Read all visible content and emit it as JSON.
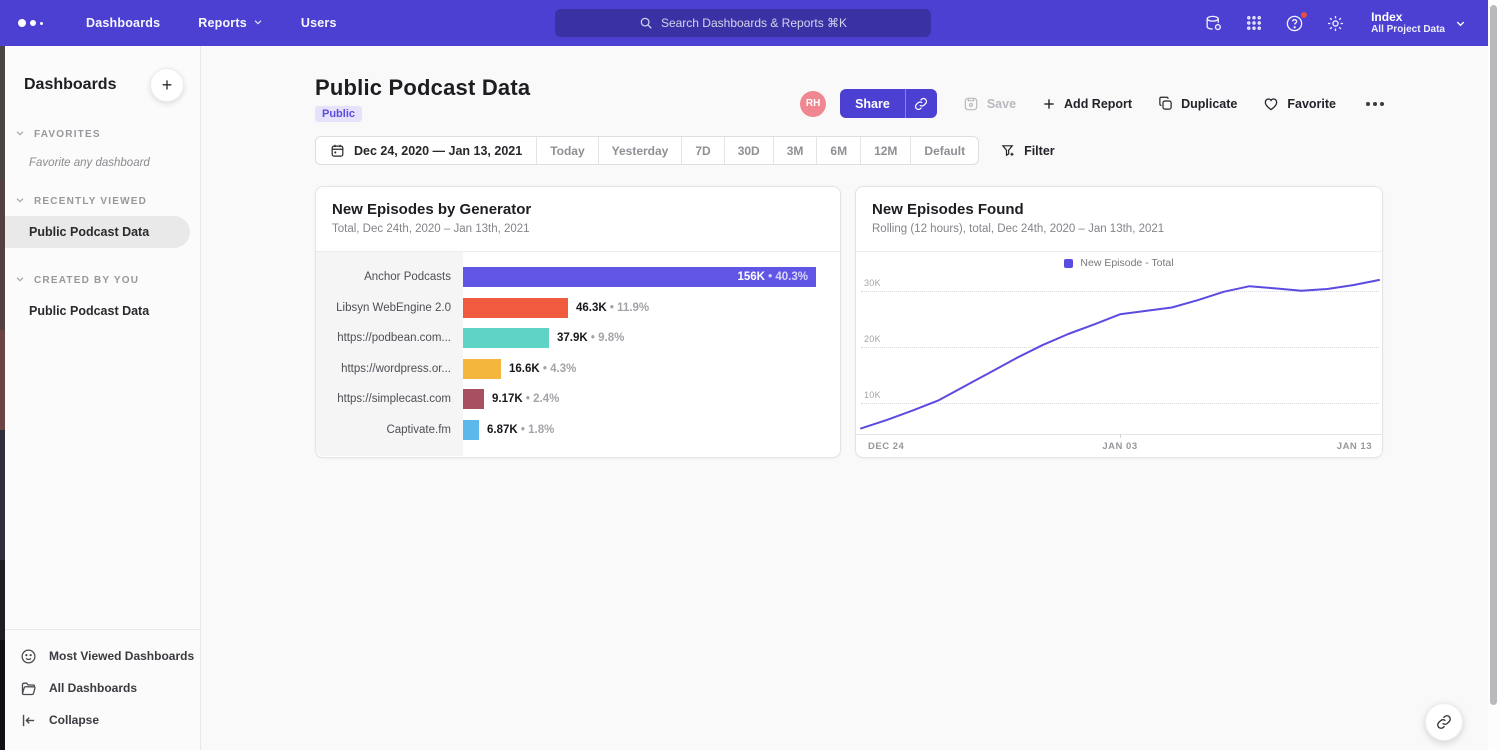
{
  "colors": {
    "topbar_bg": "#4b40d2",
    "accent": "#4b40d2",
    "badge_bg": "#e6e2fb",
    "badge_text": "#5b4be0",
    "avatar_bg": "#f0868f",
    "notification_dot": "#f4503a"
  },
  "topbar": {
    "nav": [
      {
        "label": "Dashboards",
        "chevron": false
      },
      {
        "label": "Reports",
        "chevron": true
      },
      {
        "label": "Users",
        "chevron": false
      }
    ],
    "search_placeholder": "Search Dashboards & Reports ⌘K",
    "right_icons": [
      "data-source-icon",
      "apps-grid-icon",
      "help-icon",
      "settings-gear-icon"
    ],
    "help_has_notification": true,
    "project_name": "Index",
    "project_scope": "All Project Data"
  },
  "sidebar": {
    "title": "Dashboards",
    "add_button": "+",
    "sections": [
      {
        "label": "FAVORITES",
        "empty": "Favorite any dashboard",
        "items": []
      },
      {
        "label": "RECENTLY VIEWED",
        "items": [
          {
            "label": "Public Podcast Data",
            "active": true
          }
        ]
      },
      {
        "label": "CREATED BY YOU",
        "items": [
          {
            "label": "Public Podcast Data",
            "active": false
          }
        ]
      }
    ],
    "footer": [
      {
        "icon": "smiley-icon",
        "label": "Most Viewed Dashboards"
      },
      {
        "icon": "folder-icon",
        "label": "All Dashboards"
      },
      {
        "icon": "collapse-icon",
        "label": "Collapse"
      }
    ]
  },
  "page": {
    "title": "Public Podcast Data",
    "badge": "Public",
    "avatar_initials": "RH",
    "actions": {
      "share": "Share",
      "save": "Save",
      "add_report": "Add Report",
      "duplicate": "Duplicate",
      "favorite": "Favorite",
      "more_icon": "ellipsis-icon"
    }
  },
  "datebar": {
    "range": "Dec 24, 2020 — Jan 13, 2021",
    "presets": [
      "Today",
      "Yesterday",
      "7D",
      "30D",
      "3M",
      "6M",
      "12M",
      "Default"
    ],
    "filter_label": "Filter"
  },
  "chart_data": [
    {
      "type": "bar",
      "orientation": "horizontal",
      "title": "New Episodes by Generator",
      "subtitle": "Total, Dec 24th, 2020 – Jan 13th, 2021",
      "categories": [
        "Anchor Podcasts",
        "Libsyn WebEngine 2.0",
        "https://podbean.com...",
        "https://wordpress.or...",
        "https://simplecast.com",
        "Captivate.fm"
      ],
      "values": [
        156000,
        46300,
        37900,
        16600,
        9170,
        6870
      ],
      "value_labels": [
        "156K",
        "46.3K",
        "37.9K",
        "16.6K",
        "9.17K",
        "6.87K"
      ],
      "percent_labels": [
        "40.3%",
        "11.9%",
        "9.8%",
        "4.3%",
        "2.4%",
        "1.8%"
      ],
      "bar_colors": [
        "#6155e5",
        "#f05b40",
        "#5fd4c5",
        "#f5b63e",
        "#a85062",
        "#5cb7ea"
      ],
      "xlim": [
        0,
        166000
      ],
      "grid": false
    },
    {
      "type": "line",
      "title": "New Episodes Found",
      "subtitle": "Rolling (12 hours), total, Dec 24th, 2020 – Jan 13th, 2021",
      "legend": [
        {
          "label": "New Episode - Total",
          "color": "#5b4be0"
        }
      ],
      "legend_position": "top-center",
      "line_color": "#5b4be0",
      "x_start": "Dec 24, 2020",
      "x_end": "Jan 13, 2021",
      "values": [
        5500,
        7000,
        8700,
        10500,
        13000,
        15500,
        18000,
        20300,
        22300,
        24000,
        25800,
        26400,
        27000,
        28300,
        29800,
        30800,
        30400,
        30000,
        30300,
        31000,
        31900
      ],
      "x_ticks": [
        {
          "label": "DEC 24",
          "pos": 0
        },
        {
          "label": "JAN 03",
          "pos": 0.5
        },
        {
          "label": "JAN 13",
          "pos": 1
        }
      ],
      "y_ticks": [
        {
          "label": "10K",
          "value": 10000
        },
        {
          "label": "20K",
          "value": 20000
        },
        {
          "label": "30K",
          "value": 30000
        }
      ],
      "ylim": [
        4500,
        33500
      ],
      "grid": "horizontal-dotted"
    }
  ]
}
